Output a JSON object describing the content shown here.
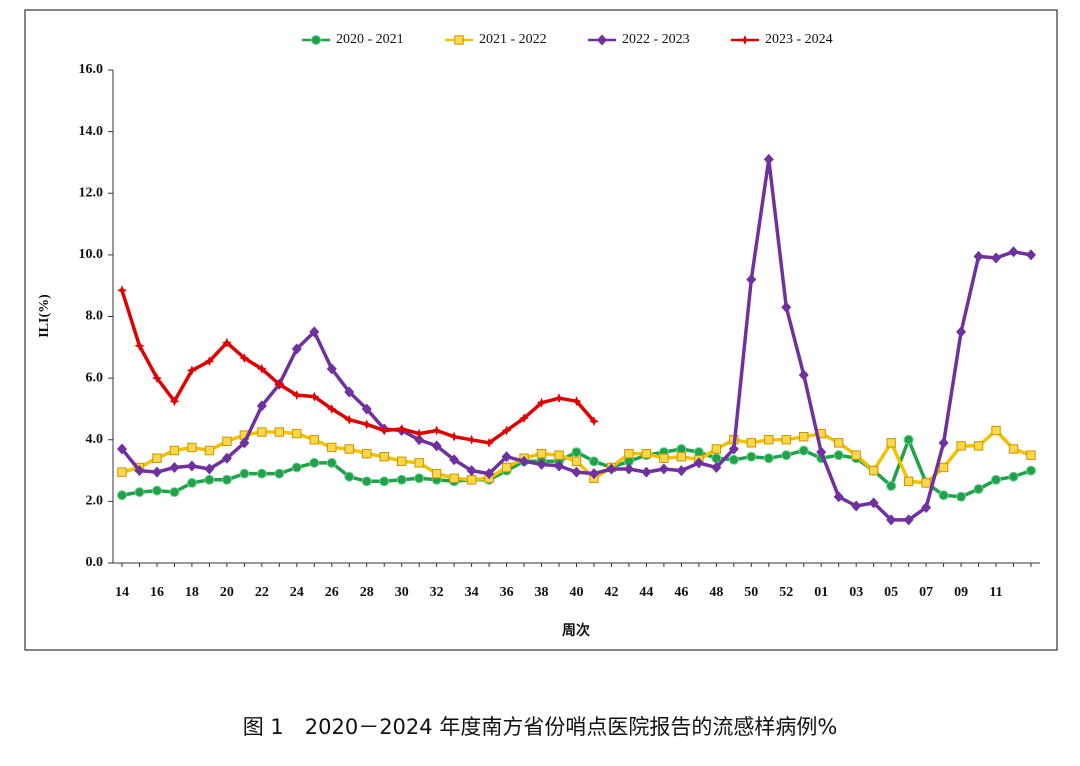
{
  "chart_data": {
    "type": "line",
    "caption": "图 1　2020－2024 年度南方省份哨点医院报告的流感样病例%",
    "x_label": "周次",
    "y_label": "ILI(%)",
    "categories": [
      "14",
      null,
      "16",
      null,
      "18",
      null,
      "20",
      null,
      "22",
      null,
      "24",
      null,
      "26",
      null,
      "28",
      null,
      "30",
      null,
      "32",
      null,
      "34",
      null,
      "36",
      null,
      "38",
      null,
      "40",
      null,
      "42",
      null,
      "44",
      null,
      "46",
      null,
      "48",
      null,
      "50",
      null,
      "52",
      null,
      "01",
      null,
      "03",
      null,
      "05",
      null,
      "07",
      null,
      "09",
      null,
      "11",
      null,
      null
    ],
    "ylim": [
      0,
      16
    ],
    "yticks": [
      {
        "value": 0,
        "label": "0.0"
      },
      {
        "value": 2,
        "label": "2.0"
      },
      {
        "value": 4,
        "label": "4.0"
      },
      {
        "value": 6,
        "label": "6.0"
      },
      {
        "value": 8,
        "label": "8.0"
      },
      {
        "value": 10,
        "label": "10.0"
      },
      {
        "value": 12,
        "label": "12.0"
      },
      {
        "value": 14,
        "label": "14.0"
      },
      {
        "value": 16,
        "label": "16.0"
      }
    ],
    "legend": "top",
    "series": [
      {
        "name": "2020 - 2021",
        "color": "#1fa24a",
        "marker": "circle",
        "values": [
          2.2,
          2.3,
          2.35,
          2.3,
          2.6,
          2.7,
          2.7,
          2.9,
          2.9,
          2.9,
          3.1,
          3.25,
          3.25,
          2.8,
          2.65,
          2.65,
          2.7,
          2.75,
          2.7,
          2.65,
          2.7,
          2.7,
          3.0,
          3.3,
          3.3,
          3.3,
          3.6,
          3.3,
          3.1,
          3.3,
          3.5,
          3.6,
          3.7,
          3.6,
          3.4,
          3.35,
          3.45,
          3.4,
          3.5,
          3.65,
          3.4,
          3.5,
          3.4,
          3.0,
          2.5,
          4.0,
          2.6,
          2.2,
          2.15,
          2.4,
          2.7,
          2.8,
          3.0
        ]
      },
      {
        "name": "2021 - 2022",
        "color": "#f2c100",
        "marker": "square",
        "values": [
          2.95,
          3.1,
          3.4,
          3.65,
          3.75,
          3.65,
          3.95,
          4.15,
          4.25,
          4.25,
          4.2,
          4.0,
          3.75,
          3.7,
          3.55,
          3.45,
          3.3,
          3.25,
          2.9,
          2.75,
          2.7,
          2.75,
          3.1,
          3.4,
          3.55,
          3.5,
          3.3,
          2.75,
          3.1,
          3.55,
          3.55,
          3.4,
          3.45,
          3.35,
          3.7,
          4.0,
          3.9,
          4.0,
          4.0,
          4.1,
          4.2,
          3.9,
          3.5,
          3.0,
          3.9,
          2.65,
          2.6,
          3.1,
          3.8,
          3.8,
          4.3,
          3.7,
          3.5
        ]
      },
      {
        "name": "2022 - 2023",
        "color": "#7030a0",
        "marker": "diamond",
        "values": [
          3.7,
          3.0,
          2.95,
          3.1,
          3.15,
          3.05,
          3.4,
          3.9,
          5.1,
          5.8,
          6.95,
          7.5,
          6.3,
          5.55,
          5.0,
          4.35,
          4.3,
          4.0,
          3.8,
          3.35,
          3.0,
          2.9,
          3.45,
          3.3,
          3.2,
          3.15,
          2.95,
          2.9,
          3.05,
          3.05,
          2.95,
          3.05,
          3.0,
          3.25,
          3.1,
          3.7,
          9.2,
          13.1,
          8.3,
          6.1,
          3.6,
          2.15,
          1.85,
          1.95,
          1.4,
          1.4,
          1.8,
          3.9,
          7.5,
          9.95,
          9.9,
          10.1,
          10.0
        ]
      },
      {
        "name": "2023 - 2024",
        "color": "#e00000",
        "marker": "star",
        "values": [
          8.85,
          7.05,
          6.0,
          5.25,
          6.25,
          6.55,
          7.15,
          6.65,
          6.3,
          5.8,
          5.45,
          5.4,
          5.0,
          4.65,
          4.5,
          4.3,
          4.35,
          4.2,
          4.3,
          4.1,
          4.0,
          3.9,
          4.3,
          4.7,
          5.2,
          5.35,
          5.25,
          4.6,
          null,
          null,
          null,
          null,
          null,
          null,
          null,
          null,
          null,
          null,
          null,
          null,
          null,
          null,
          null,
          null,
          null,
          null,
          null,
          null,
          null,
          null,
          null,
          null,
          null
        ]
      }
    ]
  }
}
